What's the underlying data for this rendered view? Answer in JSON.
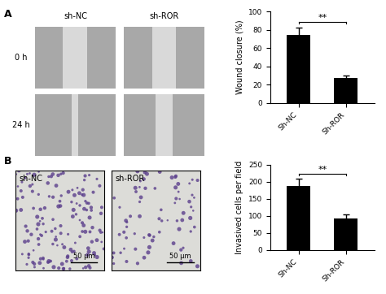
{
  "chart_data": [
    {
      "type": "bar",
      "panel": "A",
      "ylabel": "Wound closure (%)",
      "categories": [
        "Sh-NC",
        "Sh-ROR"
      ],
      "values": [
        75,
        27
      ],
      "error": [
        8,
        3
      ],
      "color": "#000000",
      "ylim": [
        0,
        100
      ],
      "yticks": [
        0,
        20,
        40,
        60,
        80,
        100
      ],
      "annotations": [
        "**"
      ]
    },
    {
      "type": "bar",
      "panel": "B",
      "ylabel": "Invasived cells per field",
      "categories": [
        "Sh-NC",
        "Sh-ROR"
      ],
      "values": [
        188,
        93
      ],
      "error": [
        20,
        10
      ],
      "color": "#000000",
      "ylim": [
        0,
        250
      ],
      "yticks": [
        0,
        50,
        100,
        150,
        200,
        250
      ],
      "annotations": [
        "**"
      ]
    }
  ],
  "images": {
    "A": {
      "panel_label": "A",
      "columns": [
        "sh-NC",
        "sh-ROR"
      ],
      "rows": [
        "0 h",
        "24 h"
      ]
    },
    "B": {
      "panel_label": "B",
      "columns": [
        "sh-NC",
        "sh-ROR"
      ],
      "scale_bar": "50 μm"
    }
  }
}
